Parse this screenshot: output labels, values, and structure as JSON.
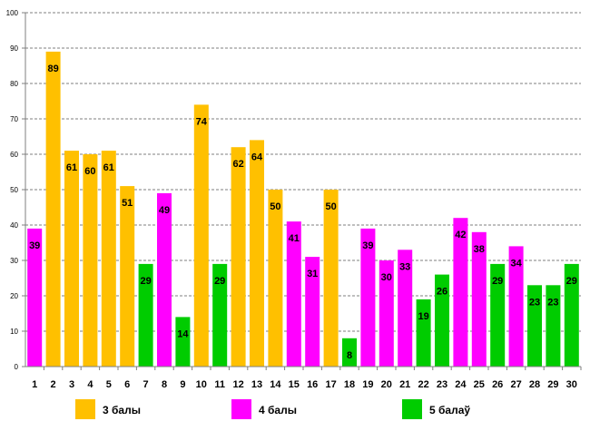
{
  "chart_data": {
    "type": "bar",
    "title": "",
    "xlabel": "",
    "ylabel": "",
    "ylim": [
      0,
      100
    ],
    "yticks": [
      "0",
      "10",
      "20",
      "30",
      "40",
      "50",
      "60",
      "70",
      "80",
      "90",
      "100"
    ],
    "grid": true,
    "legend_position": "bottom",
    "categories": [
      "1",
      "2",
      "3",
      "4",
      "5",
      "6",
      "7",
      "8",
      "9",
      "10",
      "11",
      "12",
      "13",
      "14",
      "15",
      "16",
      "17",
      "18",
      "19",
      "20",
      "21",
      "22",
      "23",
      "24",
      "25",
      "26",
      "27",
      "28",
      "29",
      "30"
    ],
    "values": [
      39,
      89,
      61,
      60,
      61,
      51,
      29,
      49,
      14,
      74,
      29,
      62,
      64,
      50,
      41,
      31,
      50,
      8,
      39,
      30,
      33,
      19,
      26,
      42,
      38,
      29,
      34,
      23,
      23,
      29
    ],
    "value_labels": [
      "39",
      "89",
      "61",
      "60",
      "61",
      "51",
      "29",
      "49",
      "14",
      "74",
      "29",
      "62",
      "64",
      "50",
      "41",
      "31",
      "50",
      "8",
      "39",
      "30",
      "33",
      "19",
      "26",
      "42",
      "38",
      "29",
      "34",
      "23",
      "23",
      "29"
    ],
    "bar_series": [
      1,
      0,
      0,
      0,
      0,
      0,
      2,
      1,
      2,
      0,
      2,
      0,
      0,
      0,
      1,
      1,
      0,
      2,
      1,
      1,
      1,
      2,
      2,
      1,
      1,
      2,
      1,
      2,
      2,
      2
    ],
    "series": [
      {
        "name": "3 балы",
        "color": "#FFC000"
      },
      {
        "name": "4 балы",
        "color": "#FF00FF"
      },
      {
        "name": "5 балаў",
        "color": "#00CC00"
      }
    ]
  }
}
